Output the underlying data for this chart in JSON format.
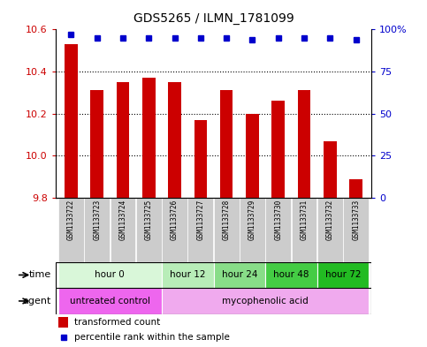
{
  "title": "GDS5265 / ILMN_1781099",
  "samples": [
    "GSM1133722",
    "GSM1133723",
    "GSM1133724",
    "GSM1133725",
    "GSM1133726",
    "GSM1133727",
    "GSM1133728",
    "GSM1133729",
    "GSM1133730",
    "GSM1133731",
    "GSM1133732",
    "GSM1133733"
  ],
  "bar_values": [
    10.53,
    10.31,
    10.35,
    10.37,
    10.35,
    10.17,
    10.31,
    10.2,
    10.26,
    10.31,
    10.07,
    9.89
  ],
  "percentile_values": [
    97,
    95,
    95,
    95,
    95,
    95,
    95,
    94,
    95,
    95,
    95,
    94
  ],
  "ylim_left": [
    9.8,
    10.6
  ],
  "ylim_right": [
    0,
    100
  ],
  "yticks_left": [
    9.8,
    10.0,
    10.2,
    10.4,
    10.6
  ],
  "yticks_right": [
    0,
    25,
    50,
    75,
    100
  ],
  "ytick_labels_right": [
    "0",
    "25",
    "50",
    "75",
    "100%"
  ],
  "bar_color": "#cc0000",
  "dot_color": "#0000cc",
  "time_groups": [
    {
      "label": "hour 0",
      "start": 0,
      "end": 3,
      "color": "#d9f7d9"
    },
    {
      "label": "hour 12",
      "start": 4,
      "end": 5,
      "color": "#b8edb8"
    },
    {
      "label": "hour 24",
      "start": 6,
      "end": 7,
      "color": "#88dd88"
    },
    {
      "label": "hour 48",
      "start": 8,
      "end": 9,
      "color": "#44cc44"
    },
    {
      "label": "hour 72",
      "start": 10,
      "end": 11,
      "color": "#22bb22"
    }
  ],
  "agent_groups": [
    {
      "label": "untreated control",
      "start": 0,
      "end": 3,
      "color": "#ee66ee"
    },
    {
      "label": "mycophenolic acid",
      "start": 4,
      "end": 11,
      "color": "#f0aaee"
    }
  ],
  "legend_bar_label": "transformed count",
  "legend_dot_label": "percentile rank within the sample",
  "bg_color": "#ffffff",
  "sample_bg_color": "#cccccc",
  "border_color": "#000000",
  "figsize": [
    4.83,
    3.93
  ],
  "dpi": 100
}
